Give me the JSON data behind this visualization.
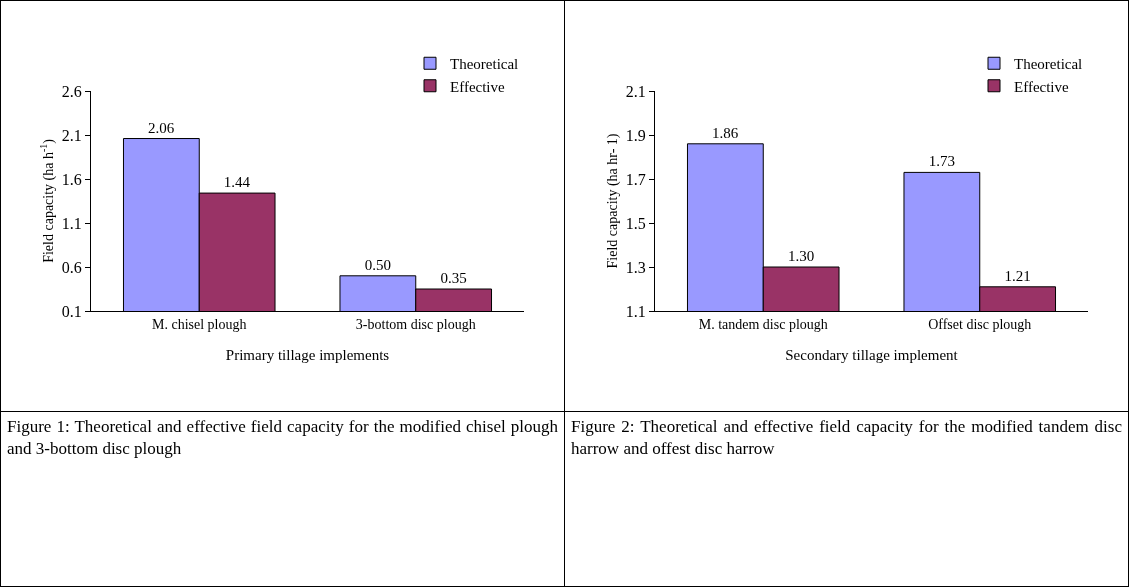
{
  "chart_data": [
    {
      "type": "bar",
      "categories": [
        "M. chisel plough",
        "3-bottom disc plough"
      ],
      "xlabel": "Primary tillage implements",
      "ylabel": "Field capacity (ha h$^{-1}$)",
      "ylim": [
        0.1,
        2.6
      ],
      "yticks": [
        "0.1",
        "0.6",
        "1.1",
        "1.6",
        "2.1",
        "2.6"
      ],
      "grid": false,
      "legend": "top right",
      "data_labels": true,
      "series": [
        {
          "name": "Theoretical",
          "color": "#9999ff",
          "values": [
            2.06,
            0.5
          ],
          "value_labels": [
            "2.06",
            "0.50"
          ]
        },
        {
          "name": "Effective",
          "color": "#993366",
          "values": [
            1.44,
            0.35
          ],
          "value_labels": [
            "1.44",
            "0.35"
          ]
        }
      ],
      "annotations": [
        "Figure 1: Theoretical and effective field capacity for the modified chisel plough and 3-bottom disc plough"
      ]
    },
    {
      "type": "bar",
      "categories": [
        "M. tandem disc plough",
        "Offset disc plough"
      ],
      "xlabel": "Secondary tillage implement",
      "ylabel": "Field capacity (ha hr- 1)",
      "ylim": [
        1.1,
        2.1
      ],
      "yticks": [
        "1.1",
        "1.3",
        "1.5",
        "1.7",
        "1.9",
        "2.1"
      ],
      "grid": false,
      "legend": "top right",
      "data_labels": true,
      "series": [
        {
          "name": "Theoretical",
          "color": "#9999ff",
          "values": [
            1.86,
            1.73
          ],
          "value_labels": [
            "1.86",
            "1.73"
          ]
        },
        {
          "name": "Effective",
          "color": "#993366",
          "values": [
            1.3,
            1.21
          ],
          "value_labels": [
            "1.30",
            "1.21"
          ]
        }
      ],
      "annotations": [
        "Figure 2: Theoretical and effective field capacity for the modified tandem disc harrow and offest disc harrow"
      ]
    }
  ]
}
